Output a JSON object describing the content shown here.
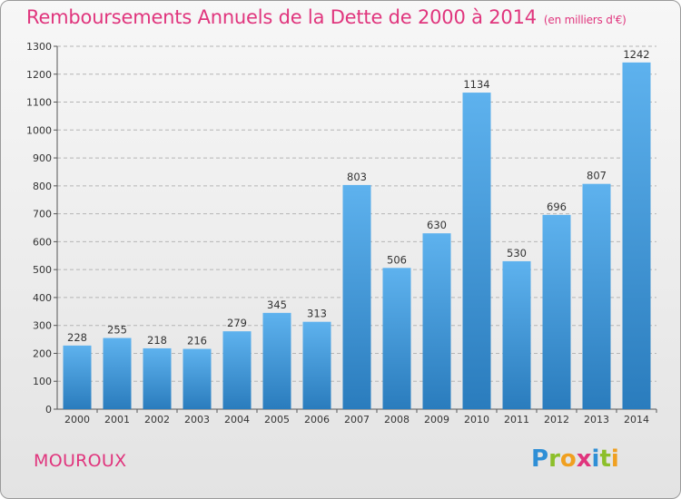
{
  "title": "Remboursements Annuels de la Dette de 2000 à 2014",
  "unit_label": "(en milliers d'€)",
  "commune": "MOUROUX",
  "logo_text": "Proxiti",
  "colors": {
    "title": "#e0357d",
    "bar_top": "#5eb2ee",
    "bar_bottom": "#2a7cbd",
    "background_top": "#f7f7f7",
    "background_bottom": "#e3e3e3"
  },
  "chart_data": {
    "type": "bar",
    "title": "Remboursements Annuels de la Dette de 2000 à 2014",
    "subtitle": "(en milliers d'€)",
    "categories": [
      "2000",
      "2001",
      "2002",
      "2003",
      "2004",
      "2005",
      "2006",
      "2007",
      "2008",
      "2009",
      "2010",
      "2011",
      "2012",
      "2013",
      "2014"
    ],
    "values": [
      228,
      255,
      218,
      216,
      279,
      345,
      313,
      803,
      506,
      630,
      1134,
      530,
      696,
      807,
      1242
    ],
    "xlabel": "",
    "ylabel": "",
    "ylim": [
      0,
      1300
    ],
    "yticks": [
      0,
      100,
      200,
      300,
      400,
      500,
      600,
      700,
      800,
      900,
      1000,
      1100,
      1200,
      1300
    ],
    "grid": "horizontal-dashed",
    "data_labels": true
  }
}
